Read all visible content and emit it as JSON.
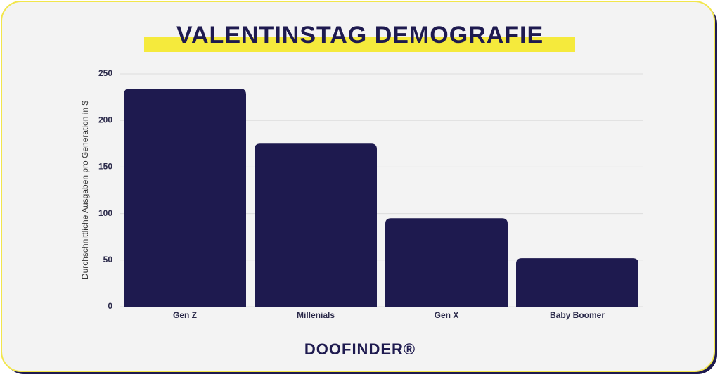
{
  "chart_data": {
    "type": "bar",
    "title": "VALENTINSTAG DEMOGRAFIE",
    "y_label": "Durchschnittliche Ausgaben pro Generation in $",
    "categories": [
      "Gen Z",
      "Millenials",
      "Gen X",
      "Baby Boomer"
    ],
    "values": [
      234,
      175,
      95,
      52
    ],
    "color": "#1e1a4f",
    "ylim": [
      0,
      250
    ],
    "yticks": [
      0,
      50,
      100,
      150,
      200,
      250
    ],
    "grid": true
  },
  "brand": "DOOFINDER®"
}
